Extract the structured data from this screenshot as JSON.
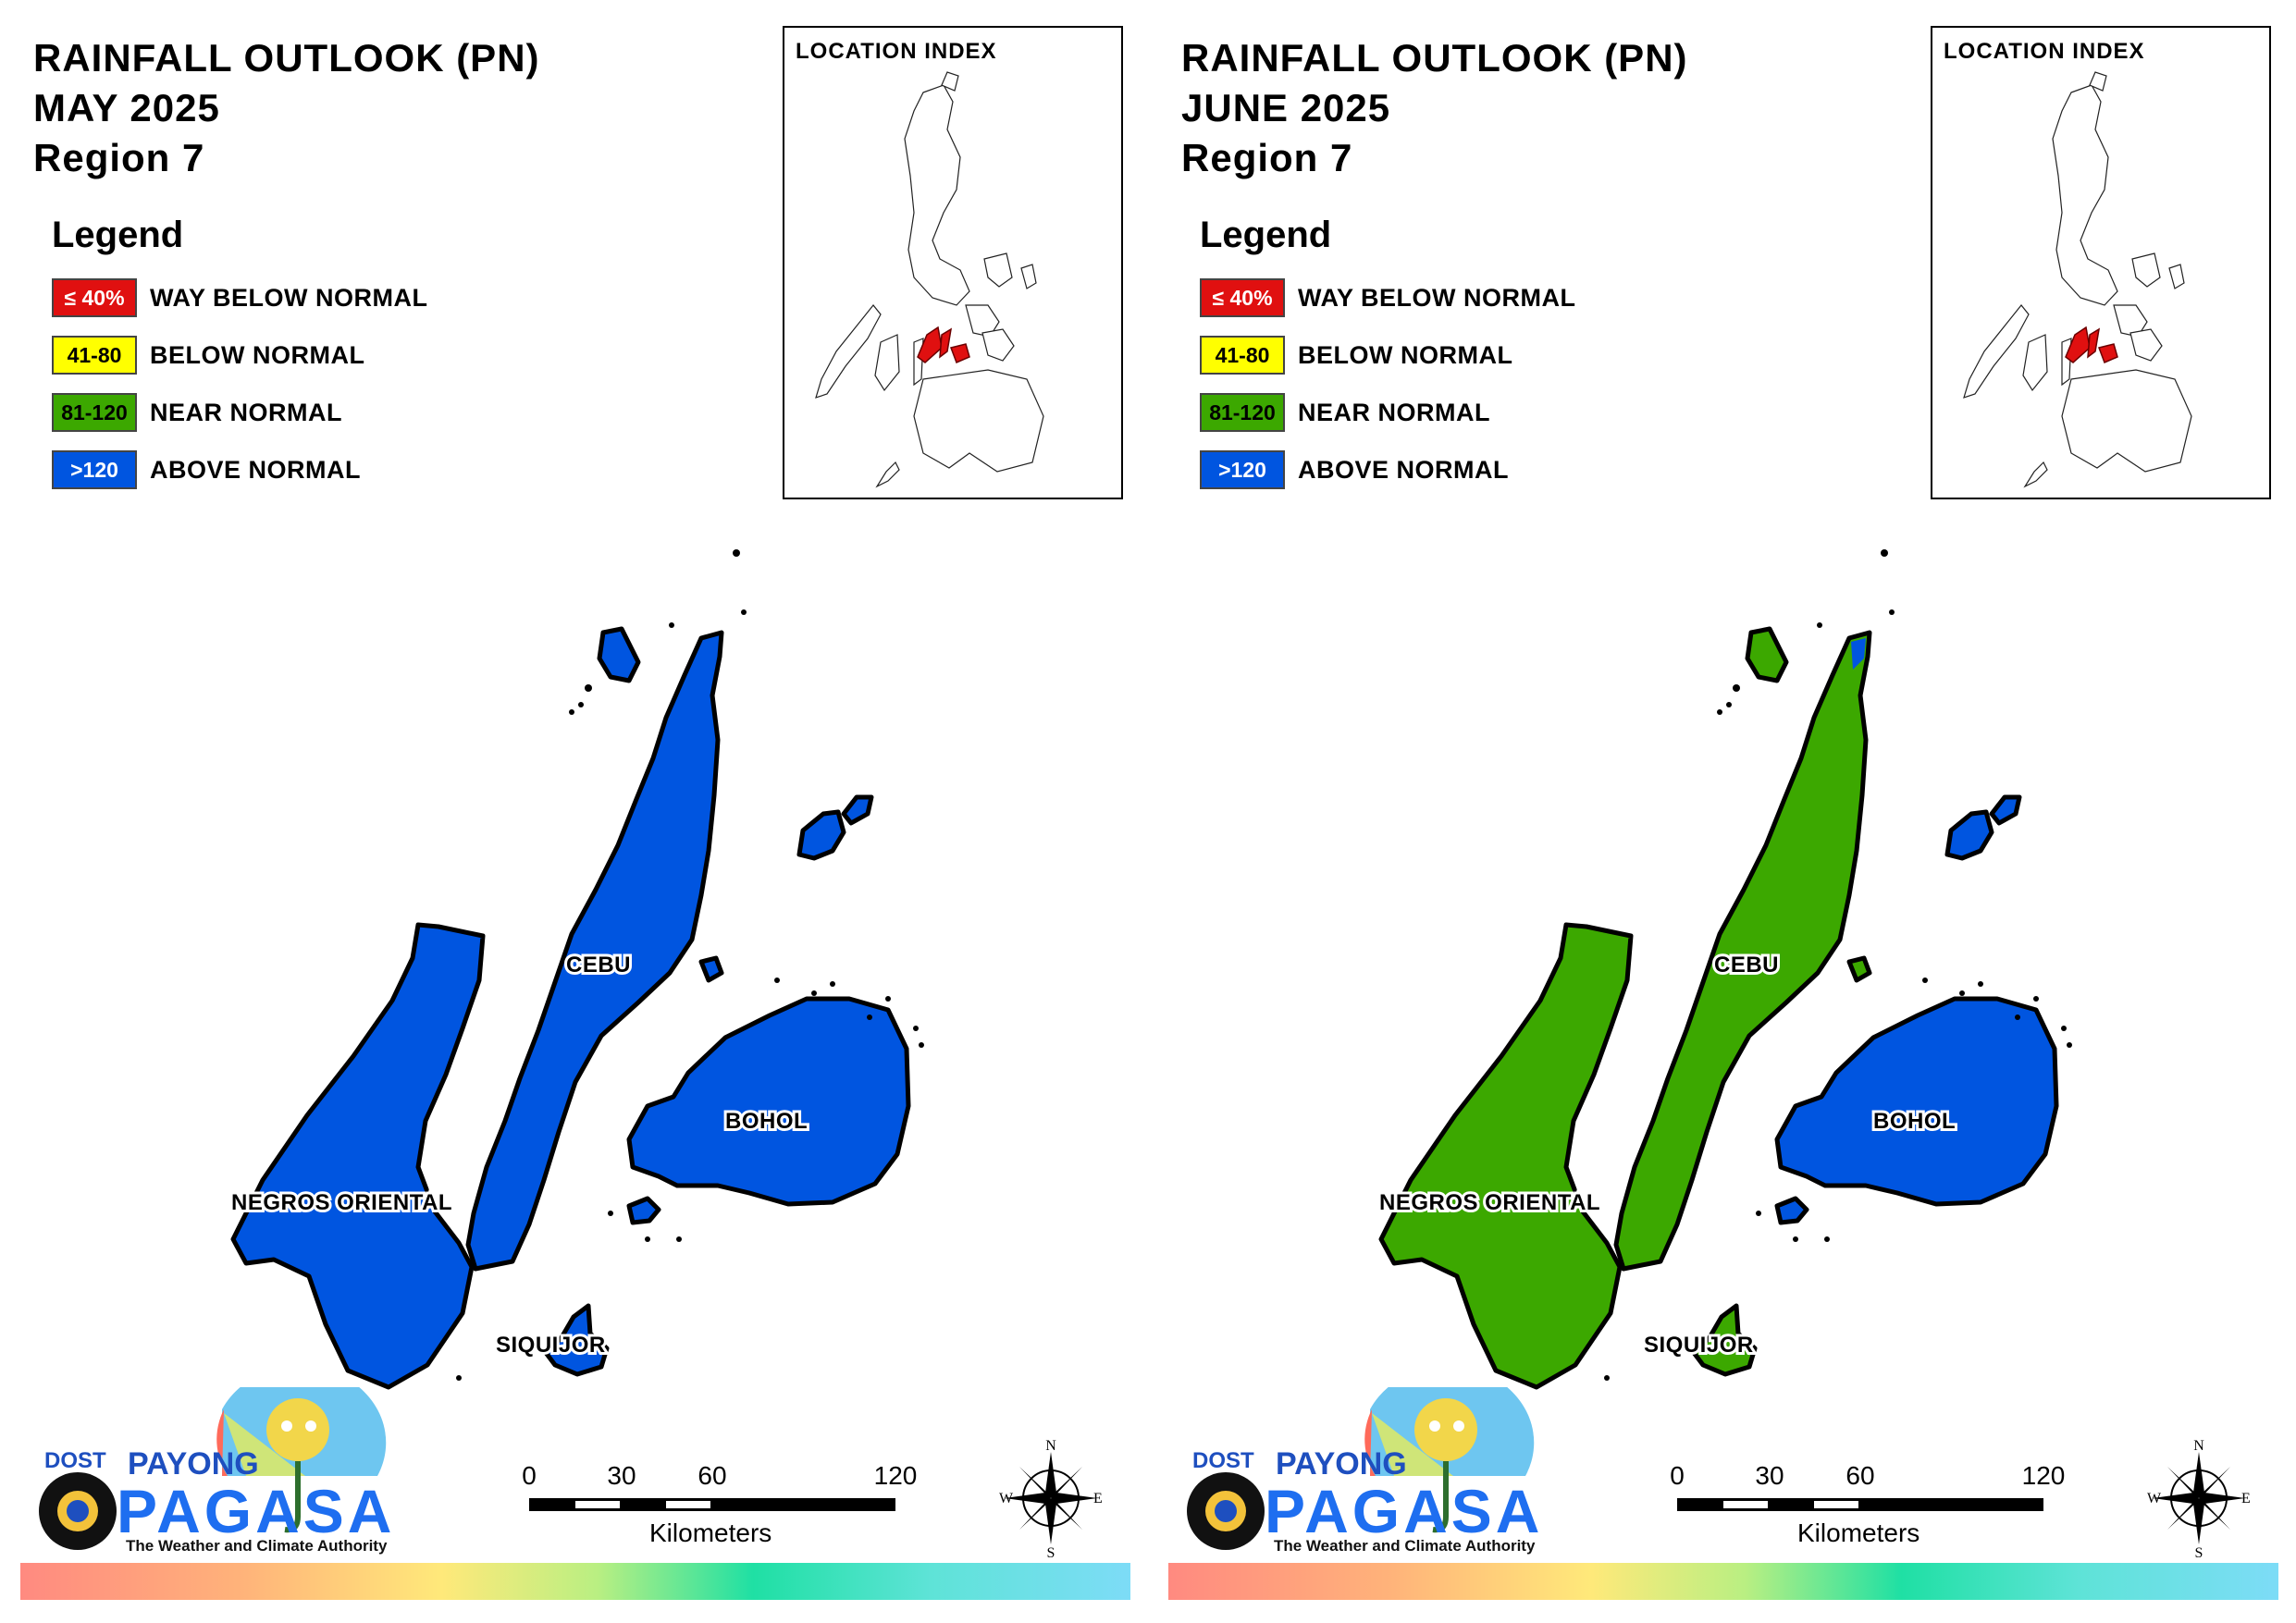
{
  "colors": {
    "way_below": "#e01010",
    "below": "#ffff00",
    "near": "#3ca800",
    "above": "#0055e0"
  },
  "panels": [
    {
      "title_line1": "RAINFALL OUTLOOK (PN)",
      "title_line2": "MAY 2025",
      "title_line3": "Region 7",
      "legend_heading": "Legend",
      "legend": [
        {
          "value": "≤ 40%",
          "label": "WAY BELOW NORMAL",
          "color": "#e01010"
        },
        {
          "value": "41-80",
          "label": "BELOW NORMAL",
          "color": "#ffff00"
        },
        {
          "value": "81-120",
          "label": "NEAR NORMAL",
          "color": "#3ca800"
        },
        {
          "value": ">120",
          "label": "ABOVE NORMAL",
          "color": "#0055e0"
        }
      ],
      "inset_title": "LOCATION INDEX",
      "regions": {
        "cebu": {
          "label": "CEBU",
          "category": "ABOVE NORMAL"
        },
        "bohol": {
          "label": "BOHOL",
          "category": "ABOVE NORMAL"
        },
        "negros_oriental": {
          "label": "NEGROS ORIENTAL",
          "category": "ABOVE NORMAL"
        },
        "siquijor": {
          "label": "SIQUIJOR",
          "category": "ABOVE NORMAL"
        }
      },
      "logo": {
        "dost": "DOST",
        "payong": "PAYONG",
        "pagasa": "PAGASA",
        "tagline": "The Weather and Climate Authority"
      },
      "scale": {
        "ticks": [
          "0",
          "30",
          "60",
          "120"
        ],
        "unit": "Kilometers"
      },
      "compass": {
        "n": "N",
        "s": "S",
        "e": "E",
        "w": "W"
      }
    },
    {
      "title_line1": "RAINFALL OUTLOOK (PN)",
      "title_line2": "JUNE 2025",
      "title_line3": "Region 7",
      "legend_heading": "Legend",
      "legend": [
        {
          "value": "≤ 40%",
          "label": "WAY BELOW NORMAL",
          "color": "#e01010"
        },
        {
          "value": "41-80",
          "label": "BELOW NORMAL",
          "color": "#ffff00"
        },
        {
          "value": "81-120",
          "label": "NEAR NORMAL",
          "color": "#3ca800"
        },
        {
          "value": ">120",
          "label": "ABOVE NORMAL",
          "color": "#0055e0"
        }
      ],
      "inset_title": "LOCATION INDEX",
      "regions": {
        "cebu": {
          "label": "CEBU",
          "category": "NEAR NORMAL"
        },
        "bohol": {
          "label": "BOHOL",
          "category": "ABOVE NORMAL"
        },
        "negros_oriental": {
          "label": "NEGROS ORIENTAL",
          "category": "NEAR NORMAL"
        },
        "siquijor": {
          "label": "SIQUIJOR",
          "category": "NEAR NORMAL"
        }
      },
      "logo": {
        "dost": "DOST",
        "payong": "PAYONG",
        "pagasa": "PAGASA",
        "tagline": "The Weather and Climate Authority"
      },
      "scale": {
        "ticks": [
          "0",
          "30",
          "60",
          "120"
        ],
        "unit": "Kilometers"
      },
      "compass": {
        "n": "N",
        "s": "S",
        "e": "E",
        "w": "W"
      }
    }
  ]
}
